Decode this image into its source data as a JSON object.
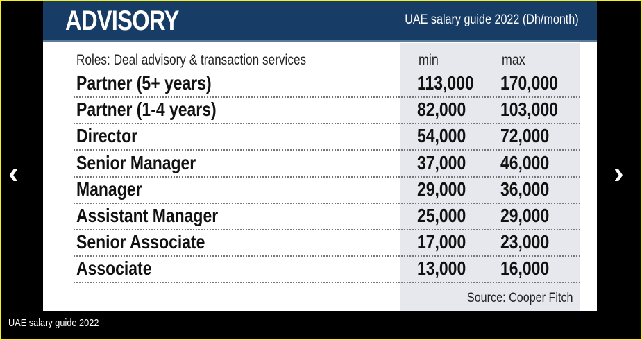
{
  "slide": {
    "title": "ADVISORY",
    "subtitle": "UAE salary guide 2022 (Dh/month)",
    "roles_header": "Roles: Deal advisory & transaction services",
    "min_label": "min",
    "max_label": "max",
    "rows": [
      {
        "role": "Partner (5+ years)",
        "min": "113,000",
        "max": "170,000"
      },
      {
        "role": "Partner (1-4 years)",
        "min": "82,000",
        "max": "103,000"
      },
      {
        "role": "Director",
        "min": "54,000",
        "max": "72,000"
      },
      {
        "role": "Senior Manager",
        "min": "37,000",
        "max": "46,000"
      },
      {
        "role": "Manager",
        "min": "29,000",
        "max": "36,000"
      },
      {
        "role": "Assistant Manager",
        "min": "25,000",
        "max": "29,000"
      },
      {
        "role": "Senior Associate",
        "min": "17,000",
        "max": "23,000"
      },
      {
        "role": "Associate",
        "min": "13,000",
        "max": "16,000"
      }
    ],
    "source": "Source: Cooper Fitch"
  },
  "gallery": {
    "caption": "UAE salary guide 2022",
    "prev_icon": "‹",
    "next_icon": "›"
  }
}
